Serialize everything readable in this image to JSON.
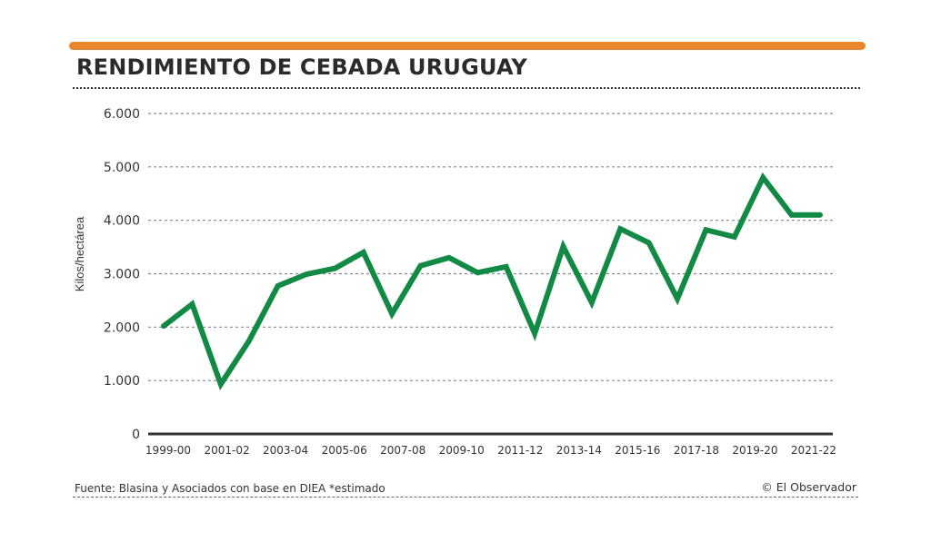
{
  "header": {
    "title": "RENDIMIENTO DE CEBADA URUGUAY",
    "accent_color": "#e8872c"
  },
  "footer": {
    "source": "Fuente: Blasina y Asociados con base en DIEA *estimado",
    "credit": "© El Observador"
  },
  "chart_data": {
    "type": "line",
    "title": "RENDIMIENTO DE CEBADA URUGUAY",
    "xlabel": "",
    "ylabel": "Kilos/hectárea",
    "ylim": [
      0,
      6000
    ],
    "yticks": [
      0,
      1000,
      2000,
      3000,
      4000,
      5000,
      6000
    ],
    "ytick_labels": [
      "0",
      "1.000",
      "2.000",
      "3.000",
      "4.000",
      "5.000",
      "6.000"
    ],
    "x_tick_labels": [
      "1999-00",
      "2001-02",
      "2003-04",
      "2005-06",
      "2007-08",
      "2009-10",
      "2011-12",
      "2013-14",
      "2015-16",
      "2017-18",
      "2019-20",
      "2021-22"
    ],
    "grid": "horizontal dotted",
    "legend": "none",
    "series": [
      {
        "name": "Rendimiento",
        "color": "#128a45",
        "values": [
          2020,
          2430,
          930,
          1750,
          2770,
          2990,
          3100,
          3400,
          2250,
          3150,
          3300,
          3020,
          3130,
          1880,
          3510,
          2460,
          3840,
          3580,
          2530,
          3820,
          3690,
          4800,
          4100,
          4100
        ]
      }
    ]
  }
}
